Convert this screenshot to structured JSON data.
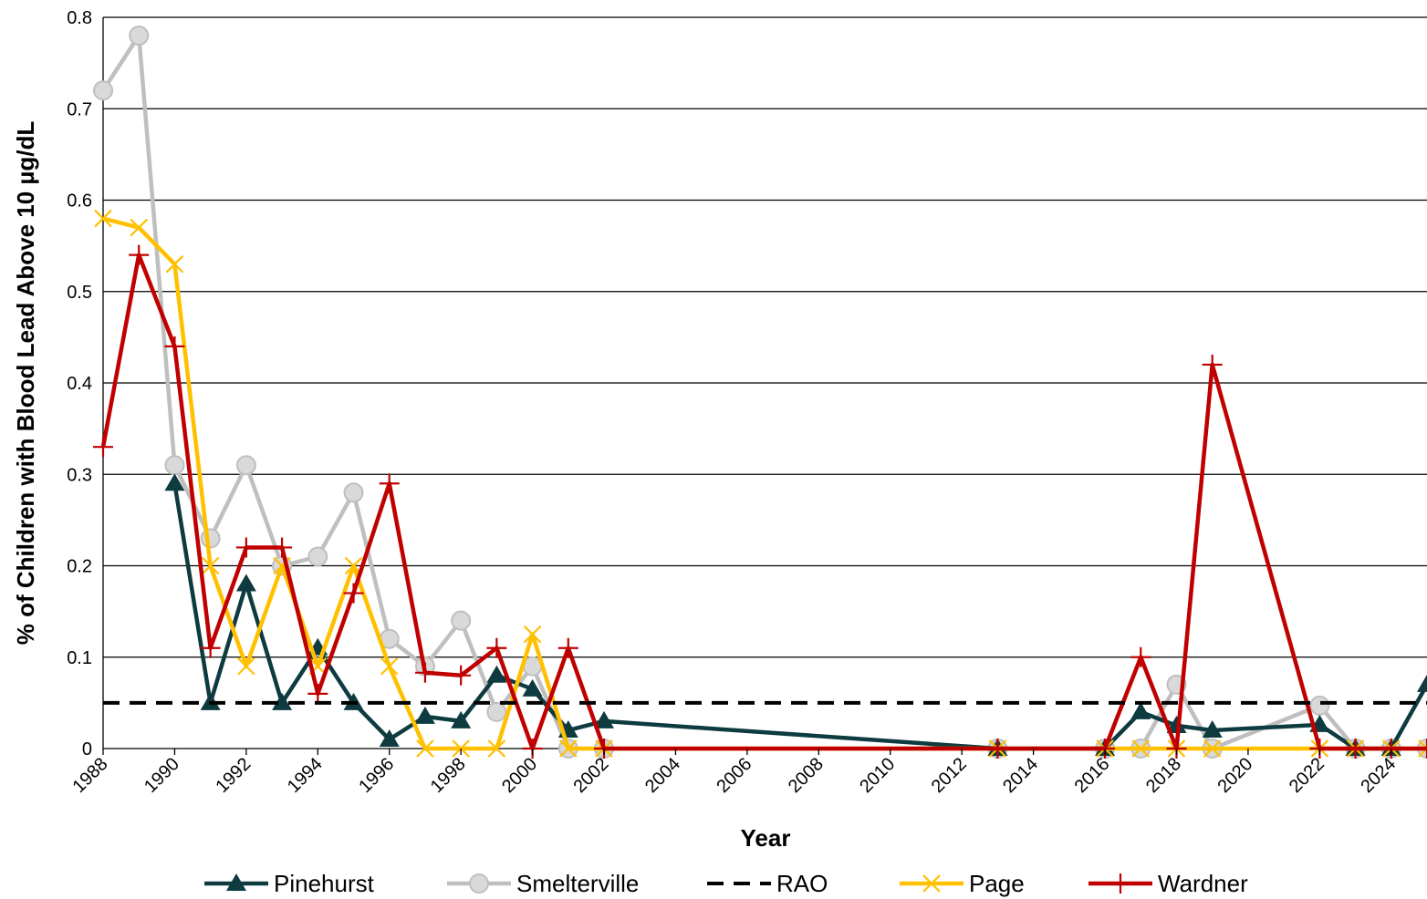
{
  "chart_data": {
    "type": "line",
    "title": "",
    "xlabel": "Year",
    "ylabel": "% of Children with Blood Lead Above 10 µg/dL",
    "xlim": [
      1988,
      2025
    ],
    "ylim": [
      0,
      0.8
    ],
    "x_ticks": [
      "1988",
      "1990",
      "1992",
      "1994",
      "1996",
      "1998",
      "2000",
      "2002",
      "2004",
      "2006",
      "2008",
      "2010",
      "2012",
      "2014",
      "2016",
      "2018",
      "2020",
      "2022",
      "2024"
    ],
    "y_ticks": [
      "0",
      "0.1",
      "0.2",
      "0.3",
      "0.4",
      "0.5",
      "0.6",
      "0.7",
      "0.8"
    ],
    "grid": "horizontal",
    "legend_position": "bottom",
    "series": [
      {
        "name": "Pinehurst",
        "color": "#0d3b40",
        "marker": "triangle",
        "dash": "solid",
        "points": [
          [
            1990,
            0.29
          ],
          [
            1991,
            0.05
          ],
          [
            1992,
            0.18
          ],
          [
            1993,
            0.05
          ],
          [
            1994,
            0.11
          ],
          [
            1995,
            0.05
          ],
          [
            1996,
            0.01
          ],
          [
            1997,
            0.035
          ],
          [
            1998,
            0.03
          ],
          [
            1999,
            0.08
          ],
          [
            2000,
            0.065
          ],
          [
            2001,
            0.02
          ],
          [
            2002,
            0.03
          ],
          [
            2013,
            0
          ],
          [
            2016,
            0
          ],
          [
            2017,
            0.04
          ],
          [
            2018,
            0.025
          ],
          [
            2019,
            0.02
          ],
          [
            2022,
            0.026
          ],
          [
            2023,
            0
          ],
          [
            2024,
            0
          ],
          [
            2025,
            0.07
          ]
        ]
      },
      {
        "name": "Smelterville",
        "color": "#bfbfbf",
        "marker": "circle",
        "dash": "solid",
        "points": [
          [
            1988,
            0.72
          ],
          [
            1989,
            0.78
          ],
          [
            1990,
            0.31
          ],
          [
            1991,
            0.23
          ],
          [
            1992,
            0.31
          ],
          [
            1993,
            0.2
          ],
          [
            1994,
            0.21
          ],
          [
            1995,
            0.28
          ],
          [
            1996,
            0.12
          ],
          [
            1997,
            0.09
          ],
          [
            1998,
            0.14
          ],
          [
            1999,
            0.04
          ],
          [
            2000,
            0.09
          ],
          [
            2001,
            0
          ],
          [
            2002,
            0
          ],
          [
            2013,
            0
          ],
          [
            2016,
            0
          ],
          [
            2017,
            0
          ],
          [
            2018,
            0.07
          ],
          [
            2019,
            0
          ],
          [
            2022,
            0.047
          ],
          [
            2023,
            0
          ],
          [
            2024,
            0
          ],
          [
            2025,
            0
          ]
        ]
      },
      {
        "name": "RAO",
        "color": "#000000",
        "marker": "none",
        "dash": "dashed",
        "points": [
          [
            1988,
            0.05
          ],
          [
            2025,
            0.05
          ]
        ]
      },
      {
        "name": "Page",
        "color": "#ffc000",
        "marker": "x",
        "dash": "solid",
        "points": [
          [
            1988,
            0.58
          ],
          [
            1989,
            0.57
          ],
          [
            1990,
            0.53
          ],
          [
            1991,
            0.2
          ],
          [
            1992,
            0.09
          ],
          [
            1993,
            0.2
          ],
          [
            1994,
            0.09
          ],
          [
            1995,
            0.2
          ],
          [
            1996,
            0.09
          ],
          [
            1997,
            0
          ],
          [
            1998,
            0
          ],
          [
            1999,
            0
          ],
          [
            2000,
            0.125
          ],
          [
            2001,
            0
          ],
          [
            2002,
            0
          ],
          [
            2013,
            0
          ],
          [
            2016,
            0
          ],
          [
            2017,
            0
          ],
          [
            2018,
            0
          ],
          [
            2019,
            0
          ],
          [
            2022,
            0
          ],
          [
            2023,
            0
          ],
          [
            2024,
            0
          ],
          [
            2025,
            0
          ]
        ]
      },
      {
        "name": "Wardner",
        "color": "#c00000",
        "marker": "plus",
        "dash": "solid",
        "points": [
          [
            1988,
            0.33
          ],
          [
            1989,
            0.54
          ],
          [
            1990,
            0.44
          ],
          [
            1991,
            0.11
          ],
          [
            1992,
            0.22
          ],
          [
            1993,
            0.22
          ],
          [
            1994,
            0.06
          ],
          [
            1995,
            0.17
          ],
          [
            1996,
            0.29
          ],
          [
            1997,
            0.083
          ],
          [
            1998,
            0.08
          ],
          [
            1999,
            0.11
          ],
          [
            2000,
            0
          ],
          [
            2001,
            0.11
          ],
          [
            2002,
            0
          ],
          [
            2013,
            0
          ],
          [
            2016,
            0
          ],
          [
            2017,
            0.1
          ],
          [
            2018,
            0
          ],
          [
            2019,
            0.42
          ],
          [
            2022,
            0
          ],
          [
            2023,
            0
          ],
          [
            2024,
            0
          ],
          [
            2025,
            0
          ]
        ]
      }
    ]
  }
}
